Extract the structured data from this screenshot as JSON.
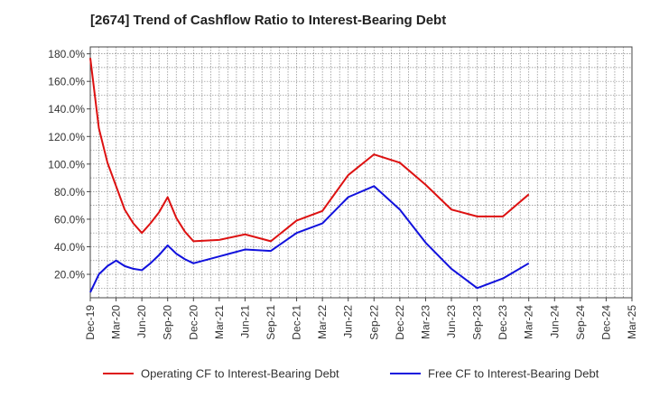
{
  "chart_data": {
    "type": "line",
    "title": "[2674]  Trend of Cashflow Ratio to Interest-Bearing Debt",
    "x_tick_labels": [
      "Dec-19",
      "Mar-20",
      "Jun-20",
      "Sep-20",
      "Dec-20",
      "Mar-21",
      "Jun-21",
      "Sep-21",
      "Dec-21",
      "Mar-22",
      "Jun-22",
      "Sep-22",
      "Dec-22",
      "Mar-23",
      "Jun-23",
      "Sep-23",
      "Dec-23",
      "Mar-24",
      "Jun-24",
      "Sep-24",
      "Dec-24",
      "Mar-25"
    ],
    "y_tick_labels": [
      "20.0%",
      "40.0%",
      "60.0%",
      "80.0%",
      "100.0%",
      "120.0%",
      "140.0%",
      "160.0%",
      "180.0%"
    ],
    "y_ticks": [
      20,
      40,
      60,
      80,
      100,
      120,
      140,
      160,
      180
    ],
    "ylim": [
      3,
      185
    ],
    "grid": true,
    "legend_position": "bottom",
    "series": [
      {
        "name": "Operating CF to Interest-Bearing Debt",
        "color": "#dd1111",
        "points": [
          {
            "x": "Dec-19",
            "y": 177
          },
          {
            "x": "Jan-20",
            "y": 126
          },
          {
            "x": "Feb-20",
            "y": 101
          },
          {
            "x": "Mar-20",
            "y": 84
          },
          {
            "x": "Apr-20",
            "y": 67
          },
          {
            "x": "May-20",
            "y": 57
          },
          {
            "x": "Jun-20",
            "y": 50
          },
          {
            "x": "Jul-20",
            "y": 57
          },
          {
            "x": "Aug-20",
            "y": 65
          },
          {
            "x": "Sep-20",
            "y": 76
          },
          {
            "x": "Oct-20",
            "y": 61
          },
          {
            "x": "Nov-20",
            "y": 51
          },
          {
            "x": "Dec-20",
            "y": 44
          },
          {
            "x": "Mar-21",
            "y": 45
          },
          {
            "x": "Jun-21",
            "y": 49
          },
          {
            "x": "Sep-21",
            "y": 44
          },
          {
            "x": "Dec-21",
            "y": 59
          },
          {
            "x": "Mar-22",
            "y": 66
          },
          {
            "x": "Jun-22",
            "y": 92
          },
          {
            "x": "Sep-22",
            "y": 107
          },
          {
            "x": "Dec-22",
            "y": 101
          },
          {
            "x": "Mar-23",
            "y": 85
          },
          {
            "x": "Jun-23",
            "y": 67
          },
          {
            "x": "Sep-23",
            "y": 62
          },
          {
            "x": "Dec-23",
            "y": 62
          },
          {
            "x": "Mar-24",
            "y": 78
          }
        ]
      },
      {
        "name": "Free CF to Interest-Bearing Debt",
        "color": "#1111dd",
        "points": [
          {
            "x": "Dec-19",
            "y": 7
          },
          {
            "x": "Jan-20",
            "y": 20
          },
          {
            "x": "Feb-20",
            "y": 26
          },
          {
            "x": "Mar-20",
            "y": 30
          },
          {
            "x": "Apr-20",
            "y": 26
          },
          {
            "x": "May-20",
            "y": 24
          },
          {
            "x": "Jun-20",
            "y": 23
          },
          {
            "x": "Jul-20",
            "y": 28
          },
          {
            "x": "Aug-20",
            "y": 34
          },
          {
            "x": "Sep-20",
            "y": 41
          },
          {
            "x": "Oct-20",
            "y": 35
          },
          {
            "x": "Nov-20",
            "y": 31
          },
          {
            "x": "Dec-20",
            "y": 28
          },
          {
            "x": "Mar-21",
            "y": 33
          },
          {
            "x": "Jun-21",
            "y": 38
          },
          {
            "x": "Sep-21",
            "y": 37
          },
          {
            "x": "Dec-21",
            "y": 50
          },
          {
            "x": "Mar-22",
            "y": 57
          },
          {
            "x": "Jun-22",
            "y": 76
          },
          {
            "x": "Sep-22",
            "y": 84
          },
          {
            "x": "Dec-22",
            "y": 67
          },
          {
            "x": "Mar-23",
            "y": 43
          },
          {
            "x": "Jun-23",
            "y": 24
          },
          {
            "x": "Sep-23",
            "y": 10
          },
          {
            "x": "Dec-23",
            "y": 17
          },
          {
            "x": "Mar-24",
            "y": 28
          }
        ]
      }
    ]
  }
}
